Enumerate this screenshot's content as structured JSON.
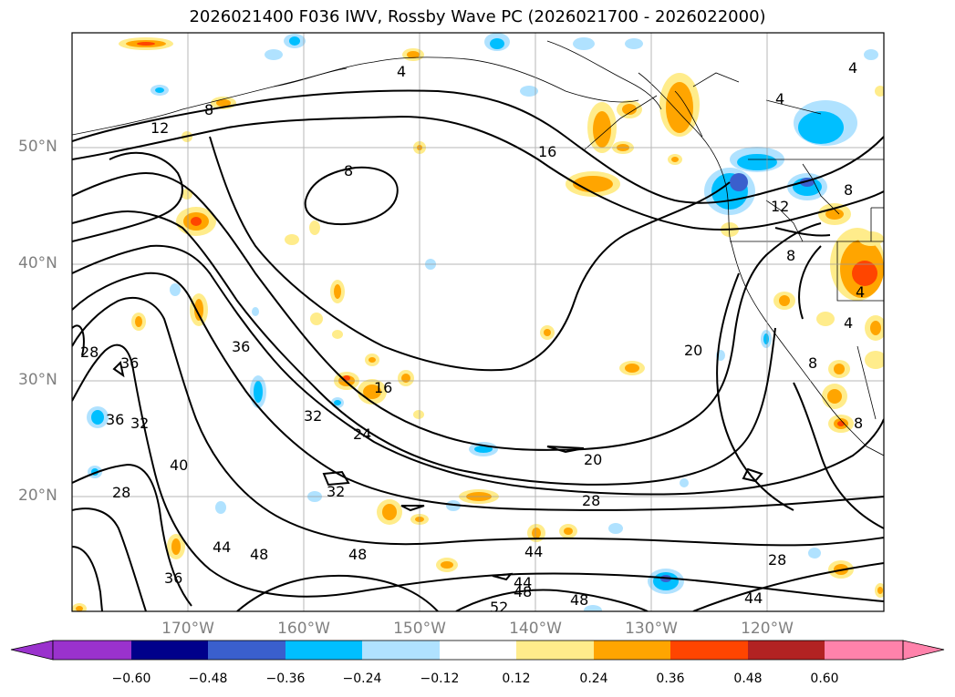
{
  "title": "2026021400 F036 IWV, Rossby Wave PC (2026021700 - 2026022000)",
  "lat_labels": [
    "50°N",
    "40°N",
    "30°N",
    "20°N"
  ],
  "lon_labels": [
    "170°W",
    "160°W",
    "150°W",
    "140°W",
    "130°W",
    "120°W"
  ],
  "colorbar": {
    "ticks": [
      "−0.60",
      "−0.48",
      "−0.36",
      "−0.24",
      "−0.12",
      "0.12",
      "0.24",
      "0.36",
      "0.48",
      "0.60"
    ],
    "colors": [
      "#9a32cd",
      "#00008b",
      "#3a5fcd",
      "#00bfff",
      "#b0e2ff",
      "#ffffff",
      "#ffec8b",
      "#ffa500",
      "#ff4500",
      "#b22222",
      "#ff82ab"
    ]
  },
  "contour_labels": [
    {
      "text": "4"
    },
    {
      "text": "4"
    },
    {
      "text": "4"
    },
    {
      "text": "8"
    },
    {
      "text": "12"
    },
    {
      "text": "16"
    },
    {
      "text": "8"
    },
    {
      "text": "12"
    },
    {
      "text": "8"
    },
    {
      "text": "8"
    },
    {
      "text": "4"
    },
    {
      "text": "4"
    },
    {
      "text": "8"
    },
    {
      "text": "8"
    },
    {
      "text": "28"
    },
    {
      "text": "36"
    },
    {
      "text": "36"
    },
    {
      "text": "36"
    },
    {
      "text": "32"
    },
    {
      "text": "16"
    },
    {
      "text": "20"
    },
    {
      "text": "32"
    },
    {
      "text": "24"
    },
    {
      "text": "20"
    },
    {
      "text": "40"
    },
    {
      "text": "28"
    },
    {
      "text": "32"
    },
    {
      "text": "28"
    },
    {
      "text": "44"
    },
    {
      "text": "48"
    },
    {
      "text": "48"
    },
    {
      "text": "44"
    },
    {
      "text": "36"
    },
    {
      "text": "44"
    },
    {
      "text": "48"
    },
    {
      "text": "52"
    },
    {
      "text": "48"
    },
    {
      "text": "28"
    },
    {
      "text": "44"
    }
  ]
}
